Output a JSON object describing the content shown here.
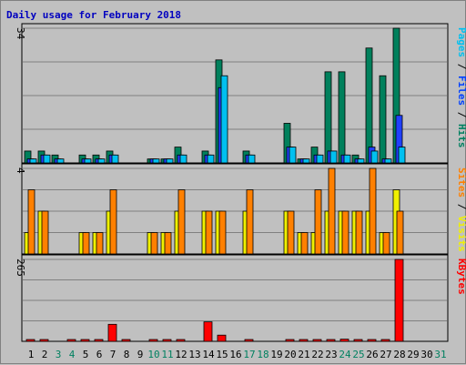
{
  "chart_data": {
    "type": "bar",
    "title": "Daily usage for February 2018",
    "days": [
      "1",
      "2",
      "3",
      "4",
      "5",
      "6",
      "7",
      "8",
      "9",
      "10",
      "11",
      "12",
      "13",
      "14",
      "15",
      "16",
      "17",
      "18",
      "19",
      "20",
      "21",
      "22",
      "23",
      "24",
      "25",
      "26",
      "27",
      "28",
      "29",
      "30",
      "31"
    ],
    "weekend_days": [
      "3",
      "4",
      "10",
      "11",
      "17",
      "18",
      "24",
      "25",
      "31"
    ],
    "panels": [
      {
        "id": "hits-files-pages",
        "max_label": "34",
        "max": 34,
        "legend": [
          {
            "text": "Pages",
            "color": "#00c0f0"
          },
          {
            "text": " / ",
            "color": "#000000"
          },
          {
            "text": "Files",
            "color": "#0040ff"
          },
          {
            "text": " / ",
            "color": "#000000"
          },
          {
            "text": "Hits",
            "color": "#008060"
          }
        ],
        "series": [
          {
            "name": "Hits",
            "color": "#00805c",
            "values": [
              3,
              3,
              2,
              0,
              2,
              2,
              3,
              0,
              0,
              1,
              1,
              4,
              0,
              3,
              26,
              0,
              3,
              0,
              0,
              10,
              1,
              4,
              23,
              23,
              2,
              29,
              22,
              34,
              0,
              0,
              0
            ]
          },
          {
            "name": "Files",
            "color": "#2040ff",
            "values": [
              1,
              2,
              1,
              0,
              1,
              1,
              2,
              0,
              0,
              1,
              1,
              2,
              0,
              2,
              19,
              0,
              2,
              0,
              0,
              4,
              1,
              2,
              3,
              2,
              1,
              4,
              1,
              12,
              0,
              0,
              0
            ]
          },
          {
            "name": "Pages",
            "color": "#00c0f0",
            "values": [
              1,
              2,
              1,
              0,
              1,
              1,
              2,
              0,
              0,
              1,
              1,
              2,
              0,
              2,
              22,
              0,
              2,
              0,
              0,
              4,
              1,
              2,
              3,
              2,
              1,
              3,
              1,
              4,
              0,
              0,
              0
            ]
          }
        ]
      },
      {
        "id": "visits-sites",
        "max_label": "4",
        "max": 4,
        "legend": [
          {
            "text": "Sites",
            "color": "#ff8000"
          },
          {
            "text": " / ",
            "color": "#000000"
          },
          {
            "text": "Visits",
            "color": "#f0f000"
          }
        ],
        "series": [
          {
            "name": "Visits",
            "color": "#f0f000",
            "values": [
              1,
              2,
              0,
              0,
              1,
              1,
              2,
              0,
              0,
              1,
              1,
              2,
              0,
              2,
              2,
              0,
              2,
              0,
              0,
              2,
              1,
              1,
              2,
              2,
              2,
              2,
              1,
              3,
              0,
              0,
              0
            ]
          },
          {
            "name": "Sites",
            "color": "#ff8000",
            "values": [
              3,
              2,
              0,
              0,
              1,
              1,
              3,
              0,
              0,
              1,
              1,
              3,
              0,
              2,
              2,
              0,
              3,
              0,
              0,
              2,
              1,
              3,
              4,
              2,
              2,
              4,
              1,
              2,
              0,
              0,
              0
            ]
          }
        ]
      },
      {
        "id": "kbytes",
        "max_label": "265",
        "max": 265,
        "legend": [
          {
            "text": "KBytes",
            "color": "#ff0000"
          }
        ],
        "series": [
          {
            "name": "KBytes",
            "color": "#ff0000",
            "values": [
              1,
              1,
              0,
              1,
              1,
              1,
              55,
              1,
              0,
              1,
              1,
              1,
              0,
              63,
              20,
              0,
              1,
              0,
              0,
              1,
              1,
              1,
              1,
              7,
              1,
              4,
              1,
              265,
              0,
              0,
              0
            ]
          }
        ]
      }
    ]
  }
}
